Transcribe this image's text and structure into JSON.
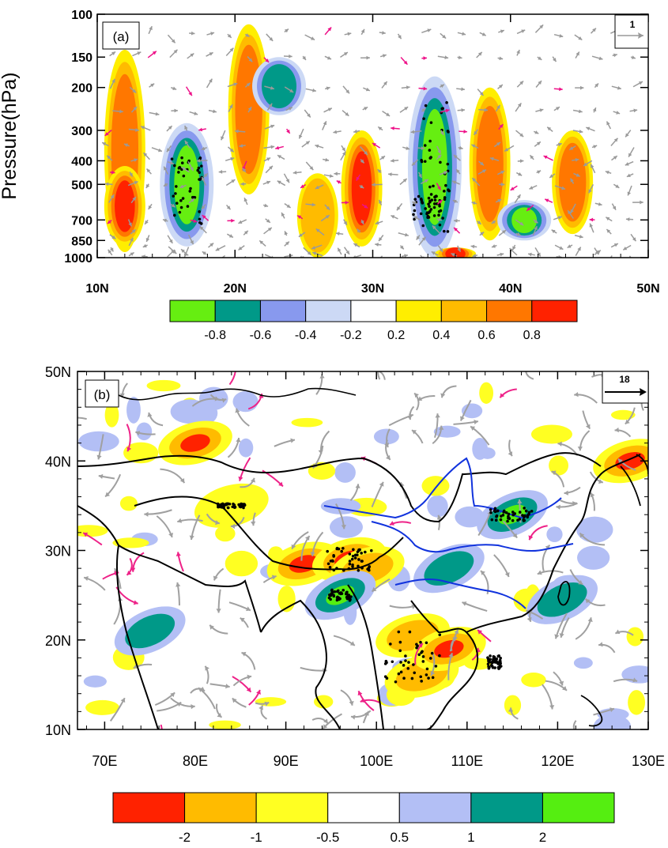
{
  "chart_data": [
    {
      "type": "heatmap",
      "panel_label": "(a)",
      "ylabel": "Pressure(hPa)",
      "y_scale": "log",
      "y_ticks": [
        100,
        150,
        200,
        300,
        400,
        500,
        700,
        850,
        1000
      ],
      "y_tick_labels": [
        "100",
        "150",
        "200",
        "300",
        "400",
        "500",
        "700",
        "850",
        "1000"
      ],
      "ylim": [
        1000,
        100
      ],
      "x_ticks": [
        10,
        20,
        30,
        40,
        50
      ],
      "x_tick_labels": [
        "10N",
        "20N",
        "30N",
        "40N",
        "50N"
      ],
      "xlim": [
        10,
        50
      ],
      "reference_vector_label": "1",
      "colorbar": {
        "tick_labels": [
          "-0.8",
          "-0.6",
          "-0.4",
          "-0.2",
          "0.2",
          "0.4",
          "0.6",
          "0.8"
        ],
        "colors": [
          "#66ee11",
          "#009988",
          "#8899ee",
          "#ccd9f5",
          "#ffffff",
          "#ffee00",
          "#ffbb00",
          "#ff7700",
          "#ff2200"
        ]
      },
      "features": [
        {
          "lat": 12,
          "p_top": 140,
          "p_bottom": 950,
          "value": 0.6
        },
        {
          "lat": 12,
          "p_top": 420,
          "p_bottom": 900,
          "value": 0.8
        },
        {
          "lat": 16.5,
          "p_top": 280,
          "p_bottom": 900,
          "value": -0.8
        },
        {
          "lat": 21,
          "p_top": 110,
          "p_bottom": 550,
          "value": 0.6
        },
        {
          "lat": 23.2,
          "p_top": 150,
          "p_bottom": 260,
          "value": -0.6
        },
        {
          "lat": 26,
          "p_top": 450,
          "p_bottom": 1000,
          "value": 0.4
        },
        {
          "lat": 29.2,
          "p_top": 300,
          "p_bottom": 900,
          "value": 0.8
        },
        {
          "lat": 34.5,
          "p_top": 180,
          "p_bottom": 1000,
          "value": -0.8
        },
        {
          "lat": 36,
          "p_top": 930,
          "p_bottom": 1000,
          "value": 0.8
        },
        {
          "lat": 38.5,
          "p_top": 200,
          "p_bottom": 850,
          "value": 0.6
        },
        {
          "lat": 41,
          "p_top": 580,
          "p_bottom": 850,
          "value": -0.8
        },
        {
          "lat": 44.5,
          "p_top": 300,
          "p_bottom": 800,
          "value": 0.6
        }
      ]
    },
    {
      "type": "heatmap",
      "panel_label": "(b)",
      "x_ticks": [
        70,
        80,
        90,
        100,
        110,
        120,
        130
      ],
      "x_tick_labels": [
        "70E",
        "80E",
        "90E",
        "100E",
        "110E",
        "120E",
        "130E"
      ],
      "xlim": [
        67,
        130
      ],
      "y_ticks": [
        10,
        20,
        30,
        40,
        50
      ],
      "y_tick_labels": [
        "10N",
        "20N",
        "30N",
        "40N",
        "50N"
      ],
      "ylim": [
        10,
        50
      ],
      "reference_vector_label": "18",
      "colorbar": {
        "tick_labels": [
          "-2",
          "-1",
          "-0.5",
          "0.5",
          "1",
          "2"
        ],
        "colors": [
          "#ff2200",
          "#ffbb00",
          "#ffff22",
          "#ffffff",
          "#b3bff5",
          "#009988",
          "#55ee11"
        ]
      },
      "features": [
        {
          "lon": 92,
          "lat": 28.5,
          "value": -2
        },
        {
          "lon": 97,
          "lat": 29,
          "value": -2
        },
        {
          "lon": 99,
          "lat": 28,
          "value": -1
        },
        {
          "lon": 104,
          "lat": 20.5,
          "value": -1
        },
        {
          "lon": 105,
          "lat": 16,
          "value": -1
        },
        {
          "lon": 96,
          "lat": 25,
          "value": 2
        },
        {
          "lon": 115,
          "lat": 34,
          "value": 2
        },
        {
          "lon": 108,
          "lat": 28,
          "value": 1
        },
        {
          "lon": 120.5,
          "lat": 24.5,
          "value": 1
        },
        {
          "lon": 75,
          "lat": 21,
          "value": 1
        },
        {
          "lon": 108,
          "lat": 19,
          "value": -2
        },
        {
          "lon": 128,
          "lat": 40,
          "value": -2
        },
        {
          "lon": 84,
          "lat": 35,
          "value": -0.5
        },
        {
          "lon": 80,
          "lat": 42,
          "value": -2
        }
      ]
    }
  ]
}
